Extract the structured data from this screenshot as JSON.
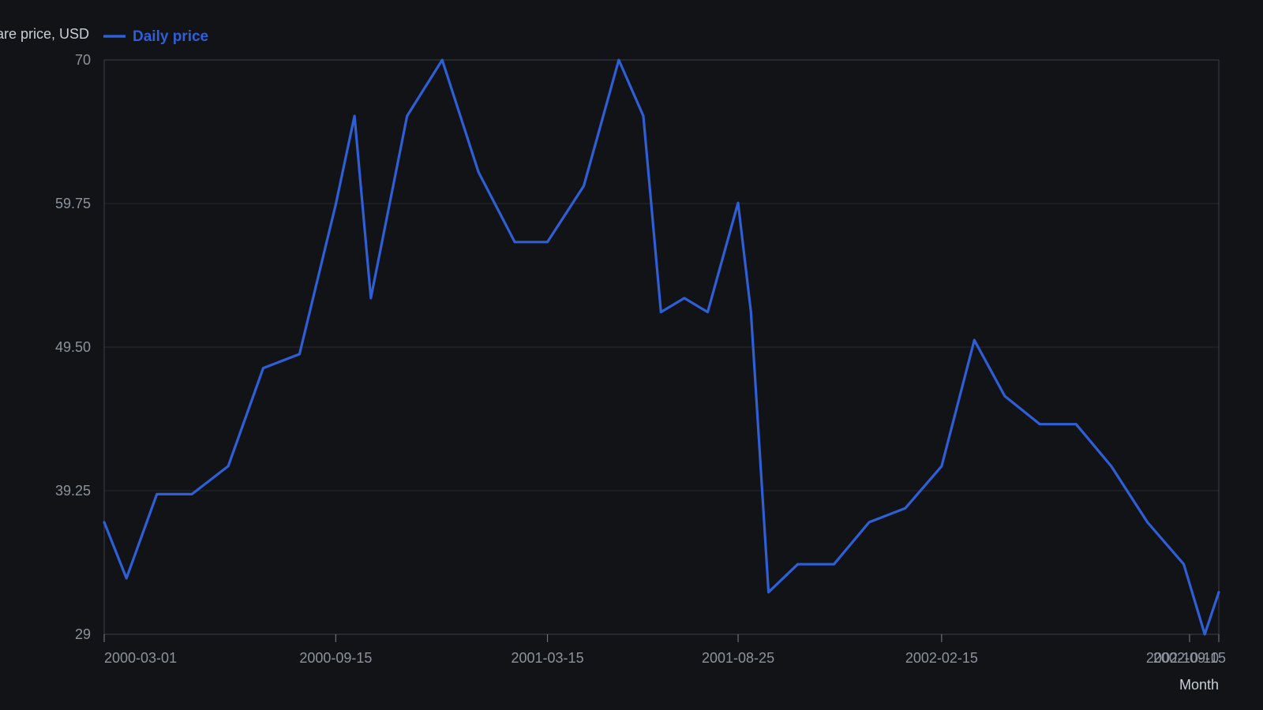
{
  "chart_data": {
    "type": "line",
    "ylabel": "Share price, USD",
    "xlabel": "Month",
    "legend": {
      "placement": "top-left",
      "entries": [
        "Daily price"
      ]
    },
    "grid": true,
    "ylim": [
      29,
      70
    ],
    "xlim": [
      "2000-03-01",
      "2002-10-10"
    ],
    "y_ticks": [
      "70",
      "59.75",
      "49.50",
      "39.25",
      "29"
    ],
    "y_tick_values": [
      70,
      59.75,
      49.5,
      39.25,
      29
    ],
    "x_ticks": [
      "2000-03-01",
      "2000-09-15",
      "2001-03-15",
      "2001-08-25",
      "2002-02-15",
      "2002-09-15",
      "2002-10-10"
    ],
    "series": [
      {
        "name": "Daily price",
        "color": "#2f5fd6",
        "x": [
          "2000-03-01",
          "2000-03-20",
          "2000-04-15",
          "2000-05-15",
          "2000-06-15",
          "2000-07-15",
          "2000-08-15",
          "2000-09-15",
          "2000-10-01",
          "2000-10-15",
          "2000-11-15",
          "2000-12-15",
          "2001-01-15",
          "2001-02-15",
          "2001-03-15",
          "2001-04-15",
          "2001-05-15",
          "2001-06-05",
          "2001-06-20",
          "2001-07-10",
          "2001-07-30",
          "2001-08-25",
          "2001-09-05",
          "2001-09-20",
          "2001-10-15",
          "2001-11-15",
          "2001-12-15",
          "2002-01-15",
          "2002-02-15",
          "2002-03-15",
          "2002-04-10",
          "2002-05-10",
          "2002-06-10",
          "2002-07-10",
          "2002-08-10",
          "2002-09-10",
          "2002-09-28",
          "2002-10-10"
        ],
        "values": [
          37,
          33,
          39,
          39,
          41,
          48,
          49,
          59.7,
          66,
          53,
          66,
          70,
          62,
          57,
          57,
          61,
          70,
          66,
          52,
          53,
          52,
          59.8,
          52,
          32,
          34,
          34,
          37,
          38,
          41,
          50,
          46,
          44,
          44,
          41,
          37,
          34,
          29,
          32
        ]
      }
    ]
  }
}
